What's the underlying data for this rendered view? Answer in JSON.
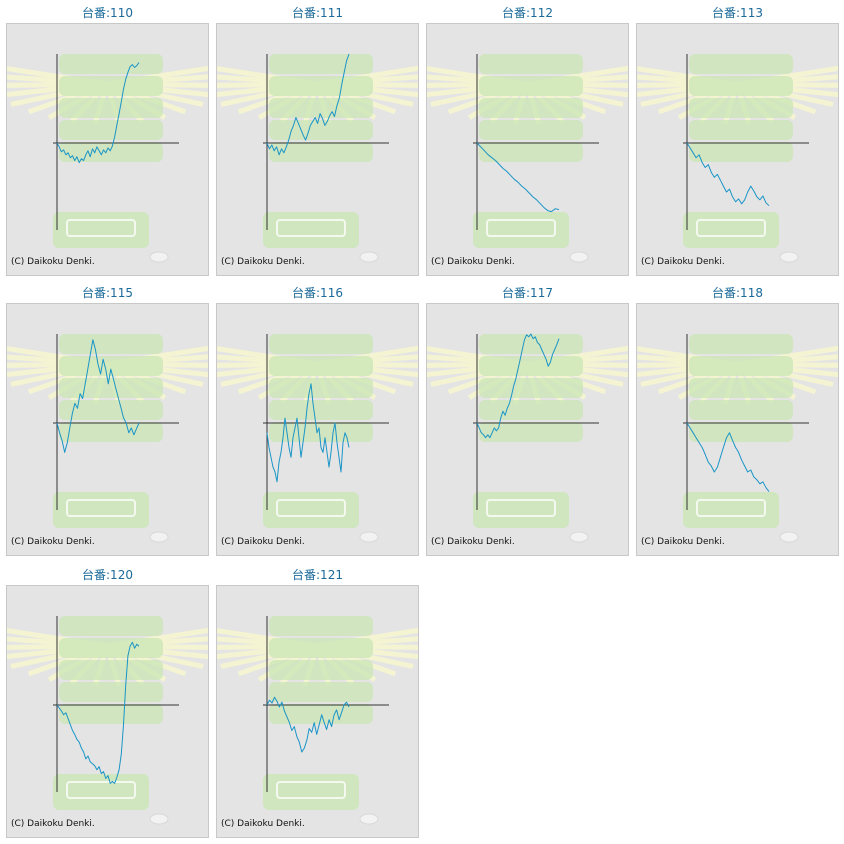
{
  "colors": {
    "line": "#1a95c7",
    "axis": "#333333",
    "title": "#1a6a9a",
    "panel_bg": "#e4e4e4",
    "deco_green": "#c9e6b4",
    "deco_rays": "#f4f4d2"
  },
  "copyright": "(C) Daikoku Denki.",
  "chart_data": [
    {
      "type": "line",
      "title": "台番:110",
      "y": [
        0,
        -4,
        -9,
        -7,
        -12,
        -10,
        -15,
        -13,
        -18,
        -14,
        -20,
        -16,
        -18,
        -12,
        -8,
        -14,
        -6,
        -10,
        -4,
        -8,
        -12,
        -7,
        -10,
        -5,
        -8,
        -3,
        6,
        18,
        30,
        42,
        55,
        65,
        72,
        78,
        80,
        77,
        79,
        82
      ]
    },
    {
      "type": "line",
      "title": "台番:111",
      "y": [
        0,
        -6,
        -2,
        -8,
        -4,
        -12,
        -6,
        -10,
        -4,
        3,
        12,
        18,
        26,
        20,
        14,
        8,
        3,
        10,
        18,
        22,
        26,
        20,
        30,
        25,
        18,
        22,
        28,
        32,
        27,
        38,
        46,
        60,
        72,
        84,
        92
      ]
    },
    {
      "type": "line",
      "title": "台番:112",
      "y": [
        0,
        -4,
        -8,
        -12,
        -15,
        -18,
        -22,
        -26,
        -29,
        -33,
        -37,
        -40,
        -44,
        -47,
        -51,
        -55,
        -58,
        -62,
        -66,
        -69,
        -70,
        -67,
        -68
      ]
    },
    {
      "type": "line",
      "title": "台番:113",
      "y": [
        0,
        -5,
        -10,
        -15,
        -12,
        -20,
        -25,
        -22,
        -30,
        -35,
        -32,
        -38,
        -44,
        -50,
        -47,
        -55,
        -60,
        -57,
        -62,
        -58,
        -50,
        -44,
        -49,
        -55,
        -58,
        -54,
        -61,
        -64
      ]
    },
    {
      "type": "line",
      "title": "台番:115",
      "y": [
        0,
        -10,
        -18,
        -30,
        -20,
        -5,
        10,
        20,
        15,
        30,
        25,
        40,
        55,
        70,
        85,
        75,
        60,
        50,
        65,
        55,
        40,
        55,
        45,
        35,
        25,
        15,
        5,
        0,
        -10,
        -5,
        -12,
        -6,
        0
      ]
    },
    {
      "type": "line",
      "title": "台番:116",
      "y": [
        -10,
        -25,
        -35,
        -45,
        -50,
        -60,
        -40,
        -30,
        -15,
        5,
        -10,
        -25,
        -35,
        -15,
        -5,
        5,
        -15,
        -35,
        -20,
        -5,
        15,
        30,
        40,
        20,
        5,
        -10,
        -5,
        -25,
        -30,
        -15,
        -30,
        -45,
        -30,
        -10,
        0,
        -20,
        -35,
        -50,
        -20,
        -10,
        -15,
        -25
      ]
    },
    {
      "type": "line",
      "title": "台番:117",
      "y": [
        0,
        -5,
        -10,
        -12,
        -15,
        -12,
        -15,
        -10,
        -5,
        -8,
        -5,
        5,
        12,
        8,
        15,
        20,
        28,
        38,
        45,
        55,
        65,
        75,
        85,
        90,
        88,
        92,
        86,
        88,
        82,
        80,
        75,
        70,
        65,
        58,
        62,
        70,
        75,
        80,
        86
      ]
    },
    {
      "type": "line",
      "title": "台番:118",
      "y": [
        0,
        -5,
        -10,
        -15,
        -20,
        -25,
        -32,
        -40,
        -44,
        -50,
        -45,
        -35,
        -25,
        -15,
        -10,
        -18,
        -25,
        -30,
        -38,
        -44,
        -50,
        -48,
        -55,
        -58,
        -62,
        -60,
        -66,
        -70
      ]
    },
    {
      "type": "line",
      "title": "台番:120",
      "y": [
        0,
        -3,
        -6,
        -10,
        -8,
        -14,
        -20,
        -26,
        -30,
        -35,
        -38,
        -44,
        -48,
        -55,
        -52,
        -58,
        -60,
        -62,
        -66,
        -63,
        -70,
        -68,
        -75,
        -72,
        -80,
        -78,
        -80,
        -74,
        -66,
        -50,
        -20,
        20,
        50,
        60,
        64,
        58,
        62,
        60
      ]
    },
    {
      "type": "line",
      "title": "台番:121",
      "y": [
        0,
        5,
        2,
        8,
        4,
        -2,
        3,
        -6,
        -12,
        -18,
        -26,
        -22,
        -32,
        -38,
        -48,
        -44,
        -36,
        -24,
        -28,
        -18,
        -30,
        -20,
        -10,
        -18,
        -25,
        -15,
        -22,
        -10,
        -5,
        -15,
        -8,
        0,
        3,
        -2
      ]
    }
  ]
}
